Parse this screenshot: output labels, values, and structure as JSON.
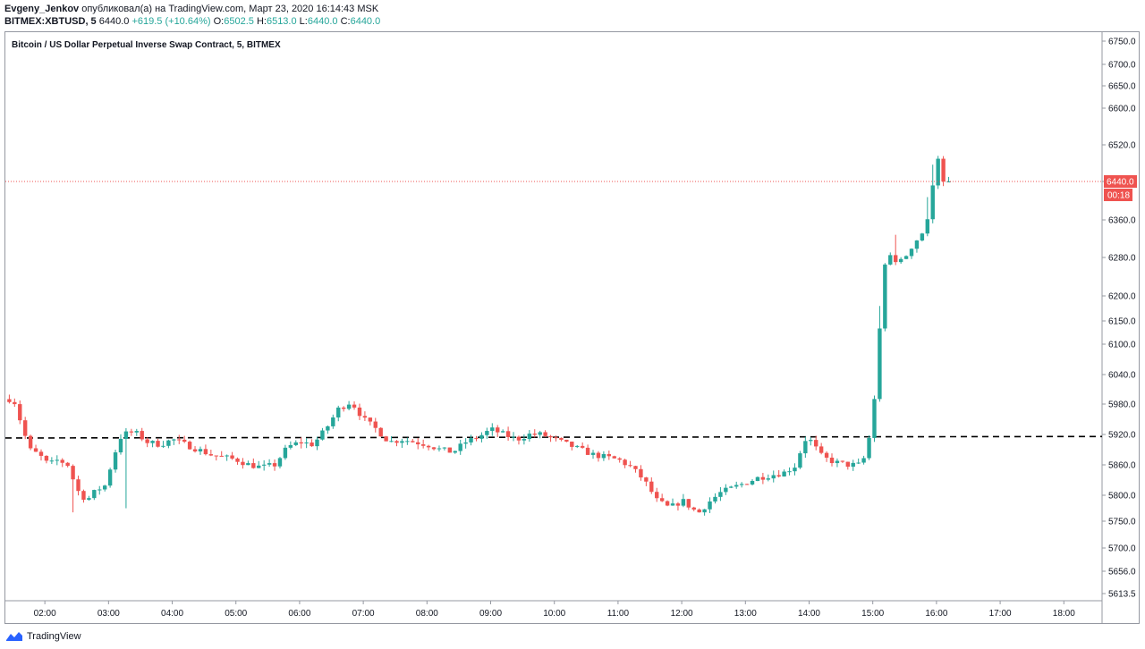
{
  "header": {
    "author": "Evgeny_Jenkov",
    "published_text": "опубликовал(а) на TradingView.com, Март 23, 2020 16:14:43 MSK",
    "symbol": "BITMEX:XBTUSD, 5",
    "last": "6440.0",
    "change": "+619.5 (+10.64%)",
    "o_label": "O:",
    "o_value": "6502.5",
    "h_label": "H:",
    "h_value": "6513.0",
    "l_label": "L:",
    "l_value": "6440.0",
    "c_label": "C:",
    "c_value": "6440.0"
  },
  "footer": {
    "brand": "TradingView"
  },
  "colors": {
    "up": "#26a69a",
    "down": "#ef5350",
    "axis": "#9598a1",
    "price_line": "#ef5350"
  },
  "chart_data": {
    "type": "candlestick",
    "title": "Bitcoin / US Dollar Perpetual Inverse Swap Contract, 5, BITMEX",
    "y_ticks": [
      6750,
      6700,
      6650,
      6600,
      6520,
      6440,
      6360,
      6280,
      6200,
      6150,
      6100,
      6040,
      5980,
      5920,
      5860,
      5800,
      5750,
      5700,
      5656,
      5613.5
    ],
    "y_tick_labels": [
      "6750.0",
      "6700.0",
      "6650.0",
      "6600.0",
      "6520.0",
      "6440.0",
      "6360.0",
      "6280.0",
      "6200.0",
      "6150.0",
      "6100.0",
      "6040.0",
      "5980.0",
      "5920.0",
      "5860.0",
      "5800.0",
      "5750.0",
      "5700.0",
      "5656.0",
      "5613.5"
    ],
    "x_tick_labels": [
      "02:00",
      "03:00",
      "04:00",
      "05:00",
      "06:00",
      "07:00",
      "08:00",
      "09:00",
      "10:00",
      "11:00",
      "12:00",
      "13:00",
      "14:00",
      "15:00",
      "16:00",
      "17:00",
      "18:00"
    ],
    "x_tick_hours": [
      2,
      3,
      4,
      5,
      6,
      7,
      8,
      9,
      10,
      11,
      12,
      13,
      14,
      15,
      16,
      17,
      18
    ],
    "x_range_hours": [
      1.38,
      18.6
    ],
    "bar_minutes": 5,
    "last_price": "6440.0",
    "countdown": "00:18",
    "support_line": {
      "start": 5913,
      "end": 5916,
      "style": "dashed"
    },
    "anchors": [
      [
        1.4,
        5990
      ],
      [
        1.55,
        5990
      ],
      [
        1.65,
        5950
      ],
      [
        1.8,
        5890
      ],
      [
        1.95,
        5880
      ],
      [
        2.1,
        5860
      ],
      [
        2.25,
        5870
      ],
      [
        2.4,
        5860
      ],
      [
        2.55,
        5810
      ],
      [
        2.7,
        5790
      ],
      [
        2.85,
        5810
      ],
      [
        3.0,
        5820
      ],
      [
        3.1,
        5870
      ],
      [
        3.25,
        5920
      ],
      [
        3.45,
        5925
      ],
      [
        3.65,
        5905
      ],
      [
        3.85,
        5900
      ],
      [
        4.05,
        5910
      ],
      [
        4.25,
        5900
      ],
      [
        4.45,
        5890
      ],
      [
        4.65,
        5880
      ],
      [
        4.85,
        5875
      ],
      [
        5.05,
        5870
      ],
      [
        5.25,
        5860
      ],
      [
        5.45,
        5855
      ],
      [
        5.65,
        5860
      ],
      [
        5.85,
        5895
      ],
      [
        6.05,
        5905
      ],
      [
        6.25,
        5900
      ],
      [
        6.45,
        5930
      ],
      [
        6.65,
        5970
      ],
      [
        6.85,
        5985
      ],
      [
        7.05,
        5950
      ],
      [
        7.25,
        5930
      ],
      [
        7.45,
        5905
      ],
      [
        7.65,
        5910
      ],
      [
        7.85,
        5905
      ],
      [
        8.05,
        5900
      ],
      [
        8.25,
        5890
      ],
      [
        8.45,
        5885
      ],
      [
        8.65,
        5905
      ],
      [
        8.85,
        5915
      ],
      [
        9.05,
        5930
      ],
      [
        9.25,
        5920
      ],
      [
        9.45,
        5910
      ],
      [
        9.65,
        5920
      ],
      [
        9.85,
        5920
      ],
      [
        10.05,
        5910
      ],
      [
        10.25,
        5900
      ],
      [
        10.45,
        5890
      ],
      [
        10.65,
        5880
      ],
      [
        10.85,
        5875
      ],
      [
        11.05,
        5870
      ],
      [
        11.25,
        5855
      ],
      [
        11.45,
        5830
      ],
      [
        11.65,
        5790
      ],
      [
        11.85,
        5775
      ],
      [
        12.05,
        5790
      ],
      [
        12.2,
        5775
      ],
      [
        12.3,
        5765
      ],
      [
        12.45,
        5785
      ],
      [
        12.65,
        5805
      ],
      [
        12.85,
        5815
      ],
      [
        13.05,
        5825
      ],
      [
        13.25,
        5835
      ],
      [
        13.45,
        5840
      ],
      [
        13.65,
        5845
      ],
      [
        13.85,
        5860
      ],
      [
        13.95,
        5910
      ],
      [
        14.05,
        5910
      ],
      [
        14.25,
        5875
      ],
      [
        14.45,
        5865
      ],
      [
        14.65,
        5860
      ],
      [
        14.85,
        5860
      ],
      [
        14.95,
        5885
      ],
      [
        15.05,
        5960
      ],
      [
        15.1,
        6060
      ],
      [
        15.25,
        6290
      ],
      [
        15.45,
        6270
      ],
      [
        15.65,
        6300
      ],
      [
        15.85,
        6340
      ],
      [
        15.95,
        6390
      ],
      [
        16.05,
        6505
      ],
      [
        16.15,
        6440
      ]
    ]
  }
}
